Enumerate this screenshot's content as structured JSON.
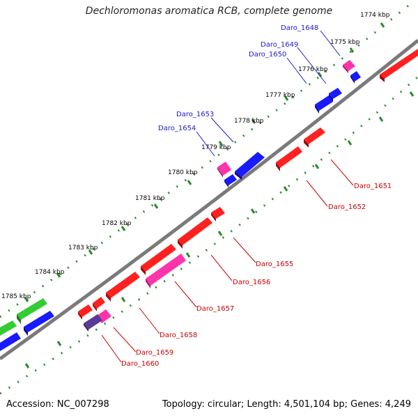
{
  "title": "Dechloromonas aromatica RCB, complete genome",
  "footer": {
    "accession": "Accession: NC_007298",
    "summary": "Topology: circular; Length: 4,501,104 bp; Genes: 4,249"
  },
  "colors": {
    "backbone": "#7a7a7a",
    "ruler": "#2a8a2a",
    "top_label": "#1a1acc",
    "bottom_label": "#cc0000",
    "red": "#ff2020",
    "blue": "#1a1aff",
    "pink": "#ff33aa",
    "green": "#33cc33",
    "purple": "#5a3a9a"
  },
  "kbp_labels": [
    "1774 kbp",
    "1775 kbp",
    "1776 kbp",
    "1777 kbp",
    "1778 kbp",
    "1779 kbp",
    "1780 kbp",
    "1781 kbp",
    "1782 kbp",
    "1783 kbp",
    "1784 kbp",
    "1785 kbp"
  ],
  "genes_top": [
    "Daro_1648",
    "Daro_1649",
    "Daro_1650",
    "Daro_1653",
    "Daro_1654"
  ],
  "genes_bottom": [
    "Daro_1651",
    "Daro_1652",
    "Daro_1655",
    "Daro_1656",
    "Daro_1657",
    "Daro_1658",
    "Daro_1659",
    "Daro_1660"
  ]
}
